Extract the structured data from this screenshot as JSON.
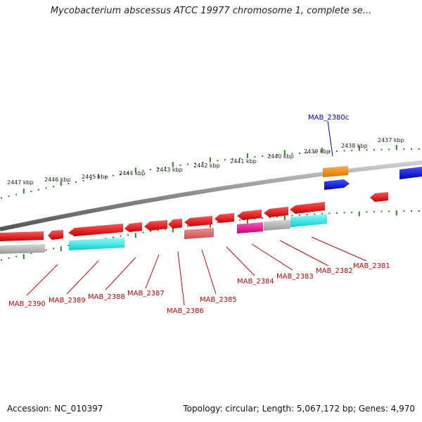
{
  "title": "Mycobacterium abscessus ATCC 19977 chromosome 1, complete se...",
  "footer": {
    "accession": "Accession: NC_010397",
    "summary": "Topology: circular; Length: 5,067,172 bp; Genes: 4,970"
  },
  "kbp_labels": [
    "2447 kbp",
    "2446 kbp",
    "2445 kbp",
    "2444 kbp",
    "2443 kbp",
    "2442 kbp",
    "2441 kbp",
    "2440 kbp",
    "2439 kbp",
    "2438 kbp",
    "2437 kbp"
  ],
  "gene_labels": [
    "MAB_2390",
    "MAB_2389",
    "MAB_2388",
    "MAB_2387",
    "MAB_2386",
    "MAB_2385",
    "MAB_2384",
    "MAB_2383",
    "MAB_2382",
    "MAB_2381"
  ],
  "top_gene_label": "MAB_2380c",
  "colors": {
    "red": "#ee1111",
    "pink": "#e06a6a",
    "magenta": "#ee1199",
    "gray": "#b0b0b0",
    "cyan": "#22eeee",
    "orange": "#ff8800",
    "blue": "#1111ee",
    "tick": "#228822",
    "label_red": "#cc0000",
    "label_blue": "#0000cc"
  }
}
